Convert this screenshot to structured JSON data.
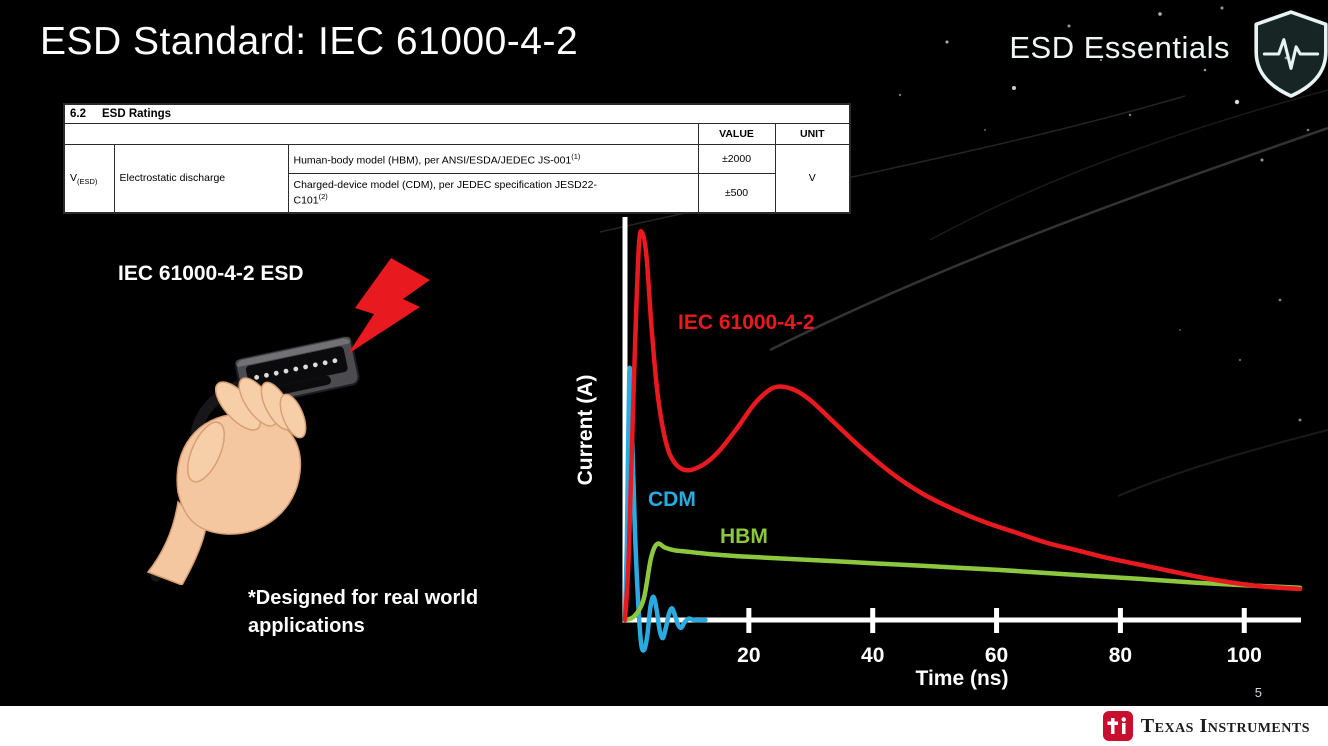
{
  "slide": {
    "title": "ESD Standard: IEC 61000-4-2",
    "brand": "ESD Essentials",
    "page_number": "5",
    "footer_logo": "Texas Instruments"
  },
  "colors": {
    "accent_red": "#e8191f",
    "cdm_cyan": "#29abe2",
    "hbm_green": "#8dc63f",
    "ti_red": "#c8102e",
    "slide_teal": "#0c4f4c",
    "footer_white": "#ffffff"
  },
  "table": {
    "section": "6.2",
    "section_title": "ESD Ratings",
    "col_headers": {
      "value": "VALUE",
      "unit": "UNIT"
    },
    "row_symbol": "V",
    "row_symbol_sub": "(ESD)",
    "row_label": "Electrostatic discharge",
    "rows": [
      {
        "model": "Human-body model (HBM), per ANSI/ESDA/JEDEC JS-001",
        "ref": "(1)",
        "value": "±2000"
      },
      {
        "model_line1": "Charged-device model (CDM), per JEDEC specification JESD22-",
        "model_line2": "C101",
        "ref": "(2)",
        "value": "±500"
      }
    ],
    "unit": "V"
  },
  "illustration": {
    "label": "IEC 61000-4-2 ESD",
    "note_line1": "*Designed for real world",
    "note_line2": "applications"
  },
  "chart_data": {
    "type": "line",
    "title": "",
    "xlabel": "Time (ns)",
    "ylabel": "Current (A)",
    "xlim": [
      0,
      109
    ],
    "ylim": [
      -1.5,
      15.5
    ],
    "xticks": [
      20,
      40,
      60,
      80,
      100
    ],
    "grid": false,
    "legend_position": "inline-labels",
    "series": [
      {
        "name": "IEC 61000-4-2",
        "color": "#e8191f",
        "points": [
          [
            0,
            0
          ],
          [
            0.6,
            2.5
          ],
          [
            1.4,
            9
          ],
          [
            2.2,
            14.3
          ],
          [
            2.8,
            15
          ],
          [
            3.5,
            14
          ],
          [
            4.3,
            11.3
          ],
          [
            5.3,
            8.7
          ],
          [
            6.6,
            6.9
          ],
          [
            8,
            6.1
          ],
          [
            10,
            5.8
          ],
          [
            12.5,
            6
          ],
          [
            15,
            6.5
          ],
          [
            18,
            7.4
          ],
          [
            21,
            8.4
          ],
          [
            24,
            9
          ],
          [
            27,
            8.95
          ],
          [
            30,
            8.5
          ],
          [
            34,
            7.6
          ],
          [
            38,
            6.7
          ],
          [
            43,
            5.7
          ],
          [
            48,
            4.9
          ],
          [
            53,
            4.3
          ],
          [
            58,
            3.8
          ],
          [
            63,
            3.4
          ],
          [
            68,
            3
          ],
          [
            73,
            2.7
          ],
          [
            78,
            2.4
          ],
          [
            83,
            2.15
          ],
          [
            88,
            1.9
          ],
          [
            93,
            1.65
          ],
          [
            98,
            1.45
          ],
          [
            103,
            1.3
          ],
          [
            109,
            1.2
          ]
        ]
      },
      {
        "name": "CDM",
        "color": "#29abe2",
        "points": [
          [
            0,
            0
          ],
          [
            0.3,
            3
          ],
          [
            0.7,
            9.6
          ],
          [
            1.1,
            7.5
          ],
          [
            1.6,
            3.5
          ],
          [
            2.1,
            0.8
          ],
          [
            2.6,
            -0.9
          ],
          [
            3.1,
            -1.15
          ],
          [
            3.6,
            -0.6
          ],
          [
            4.1,
            0.5
          ],
          [
            4.6,
            0.9
          ],
          [
            5.1,
            0.4
          ],
          [
            5.6,
            -0.4
          ],
          [
            6.1,
            -0.7
          ],
          [
            6.6,
            -0.3
          ],
          [
            7.1,
            0.25
          ],
          [
            7.6,
            0.45
          ],
          [
            8.1,
            0.15
          ],
          [
            8.6,
            -0.2
          ],
          [
            9.1,
            -0.3
          ],
          [
            9.6,
            -0.1
          ],
          [
            10.3,
            0.05
          ],
          [
            11.2,
            0
          ],
          [
            13,
            0
          ]
        ]
      },
      {
        "name": "HBM",
        "color": "#8dc63f",
        "points": [
          [
            0,
            0
          ],
          [
            1.5,
            0.15
          ],
          [
            3,
            0.8
          ],
          [
            4.2,
            2.4
          ],
          [
            5.2,
            2.95
          ],
          [
            6.5,
            2.8
          ],
          [
            8,
            2.7
          ],
          [
            10,
            2.65
          ],
          [
            14,
            2.55
          ],
          [
            20,
            2.45
          ],
          [
            28,
            2.35
          ],
          [
            36,
            2.25
          ],
          [
            44,
            2.15
          ],
          [
            52,
            2.05
          ],
          [
            60,
            1.95
          ],
          [
            68,
            1.82
          ],
          [
            76,
            1.7
          ],
          [
            84,
            1.58
          ],
          [
            92,
            1.45
          ],
          [
            100,
            1.35
          ],
          [
            109,
            1.25
          ]
        ]
      }
    ]
  }
}
